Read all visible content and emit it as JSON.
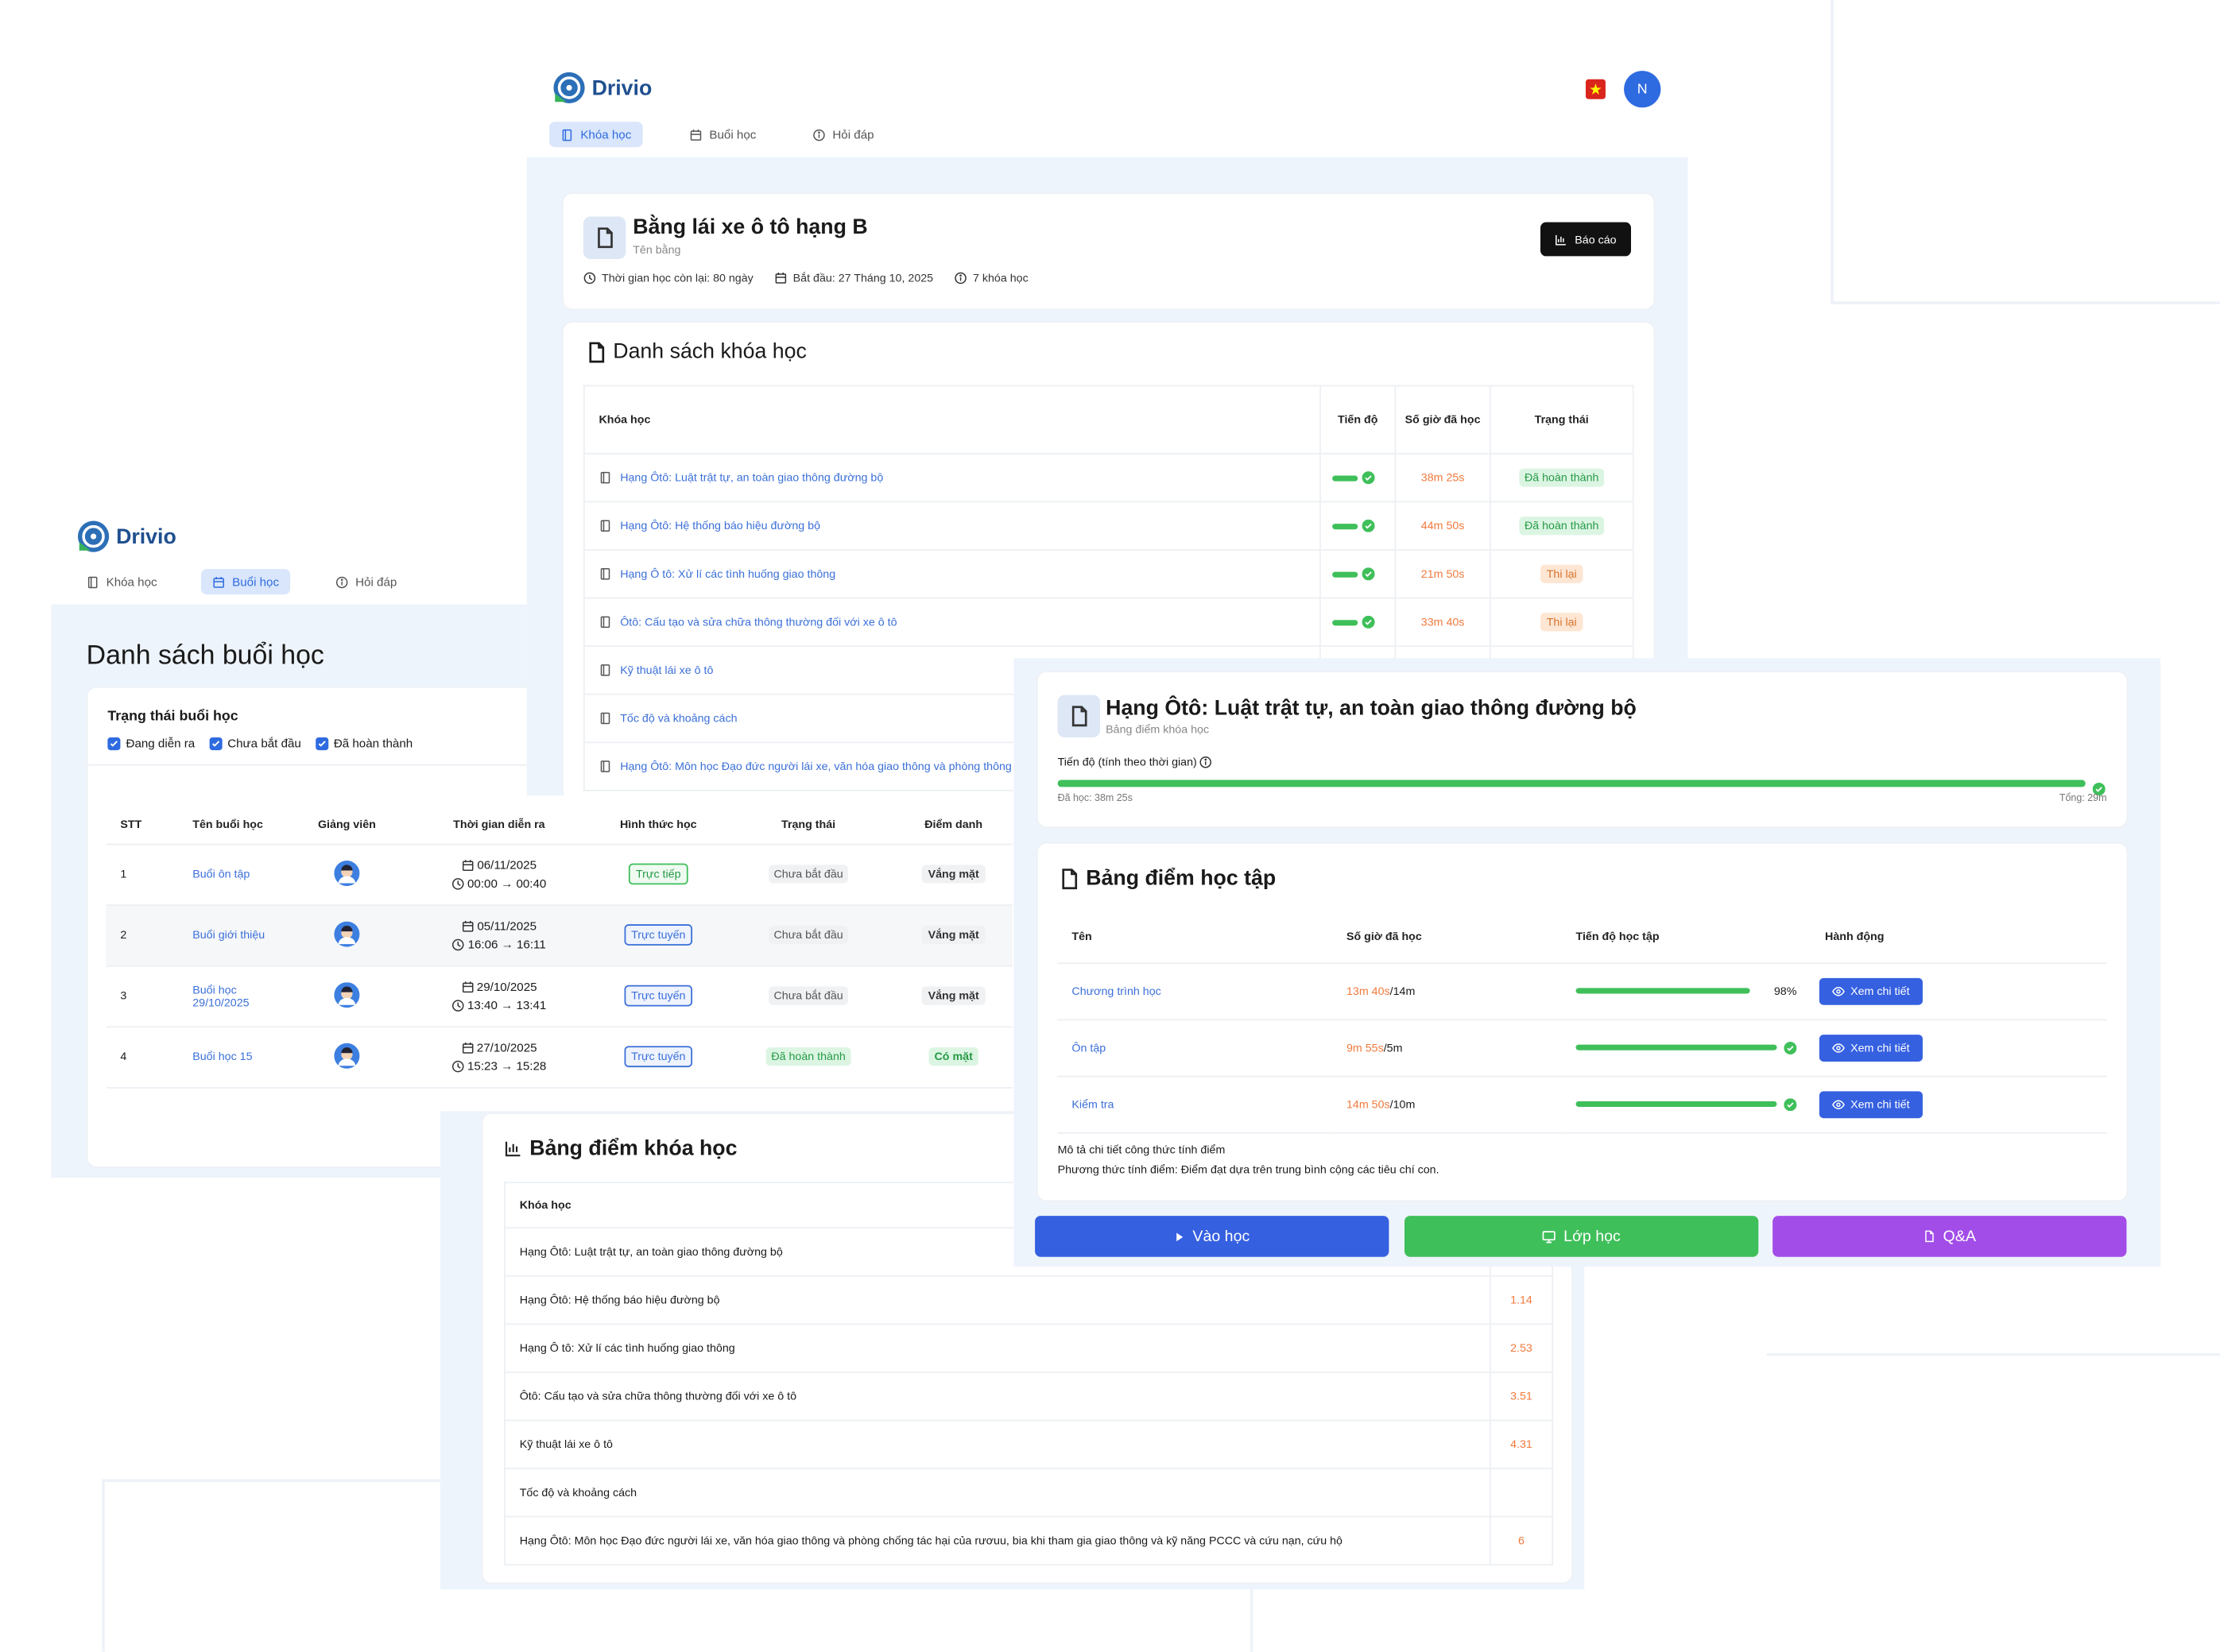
{
  "course_page": {
    "brand": "Drivio",
    "avatar": "N",
    "nav": [
      "Khóa học",
      "Buổi học",
      "Hỏi đáp"
    ],
    "header": {
      "title": "Bằng lái xe ô tô hạng B",
      "subtitle": "Tên bằng",
      "meta": [
        "Thời gian học còn lại: 80 ngày",
        "Bắt đầu: 27 Tháng 10, 2025",
        "7 khóa học"
      ],
      "button": "Báo cáo"
    },
    "course_list": {
      "title": "Danh sách khóa học",
      "columns": [
        "Khóa học",
        "Tiến độ",
        "Số giờ đã học",
        "Trạng thái"
      ],
      "rows": [
        {
          "name": "Hạng Ôtô: Luật trật tự, an toàn giao thông đường bộ",
          "hours": "38m 25s",
          "status": "Đã hoàn thành"
        },
        {
          "name": "Hạng Ôtô: Hệ thống báo hiệu đường bộ",
          "hours": "44m 50s",
          "status": "Đã hoàn thành"
        },
        {
          "name": "Hạng Ô tô: Xử lí các tình huống giao thông",
          "hours": "21m 50s",
          "status": "Thi lại"
        },
        {
          "name": "Ôtô: Cấu tạo và sửa chữa thông thường đối với xe ô tô",
          "hours": "33m 40s",
          "status": "Thi lại"
        },
        {
          "name": "Kỹ thuật lái xe ô tô"
        },
        {
          "name": "Tốc độ và khoảng cách"
        },
        {
          "name": "Hạng Ôtô: Môn học Đạo đức người lái xe, văn hóa giao thông và phòng thông và kỹ năng PCCC và cứu nạn, cứu hộ"
        }
      ]
    }
  },
  "session_page": {
    "brand": "Drivio",
    "nav": [
      "Khóa học",
      "Buổi học",
      "Hỏi đáp"
    ],
    "title": "Danh sách buổi học",
    "filter": {
      "label": "Trạng thái buổi học",
      "options": [
        "Đang diễn ra",
        "Chưa bắt đầu",
        "Đã hoàn thành"
      ]
    },
    "table": {
      "columns": [
        "STT",
        "Tên buổi học",
        "Giảng viên",
        "Thời gian diễn ra",
        "Hình thức học",
        "Trạng thái",
        "Điểm danh"
      ],
      "rows": [
        {
          "stt": 1,
          "name": "Buổi ôn tập",
          "date": "06/11/2025",
          "time": "00:00 → 00:40",
          "mode": "Trực tiếp",
          "status": "Chưa bắt đầu",
          "attendance": "Vắng mặt"
        },
        {
          "stt": 2,
          "name": "Buổi giới thiệu",
          "date": "05/11/2025",
          "time": "16:06 → 16:11",
          "mode": "Trực tuyến",
          "status": "Chưa bắt đầu",
          "attendance": "Vắng mặt"
        },
        {
          "stt": 3,
          "name": "Buổi học 29/10/2025",
          "date": "29/10/2025",
          "time": "13:40 → 13:41",
          "mode": "Trực tuyến",
          "status": "Chưa bắt đầu",
          "attendance": "Vắng mặt"
        },
        {
          "stt": 4,
          "name": "Buổi học 15",
          "date": "27/10/2025",
          "time": "15:23 → 15:28",
          "mode": "Trực tuyến",
          "status": "Đã hoàn thành",
          "attendance": "Có mặt"
        }
      ]
    }
  },
  "grades_page": {
    "title": "Bảng điểm khóa học",
    "column": "Khóa học",
    "rows": [
      {
        "name": "Hạng Ôtô: Luật trật tự, an toàn giao thông đường bộ"
      },
      {
        "name": "Hạng Ôtô: Hệ thống báo hiệu đường bộ",
        "score": 1.14
      },
      {
        "name": "Hạng Ô tô: Xử lí các tình huống giao thông",
        "score": 2.53
      },
      {
        "name": "Ôtô: Cấu tạo và sửa chữa thông thường đối với xe ô tô",
        "score": 3.51
      },
      {
        "name": "Kỹ thuật lái xe ô tô",
        "score": 4.31
      },
      {
        "name": "Tốc độ và khoảng cách"
      },
      {
        "name": "Hạng Ôtô: Môn học Đạo đức người lái xe, văn hóa giao thông và phòng chống tác hại của rươuu, bia khi tham gia giao thông và kỹ năng PCCC và cứu nạn, cứu hộ",
        "score": 6
      }
    ]
  },
  "detail_page": {
    "title": "Hạng Ôtô: Luật trật tự, an toàn giao thông đường bộ",
    "subtitle": "Bảng điểm khóa học",
    "progress_label": "Tiến độ (tính theo thời gian)",
    "studied": "Đã học: 38m 25s",
    "total": "Tổng: 29m",
    "scores": {
      "title": "Bảng điểm học tập",
      "columns": [
        "Tên",
        "Số giờ đã học",
        "Tiến độ học tập",
        "Hành động"
      ],
      "rows": [
        {
          "name": "Chương trình học",
          "studied": "13m 40s",
          "total": "/14m",
          "percent": "98%",
          "action": "Xem chi tiết"
        },
        {
          "name": "Ôn tập",
          "studied": "9m 55s",
          "total": "/5m",
          "action": "Xem chi tiết"
        },
        {
          "name": "Kiểm tra",
          "studied": "14m 50s",
          "total": "/10m",
          "action": "Xem chi tiết"
        }
      ]
    },
    "note_title": "Mô tả chi tiết công thức tính điểm",
    "note": "Phương thức tính điểm: Điểm đạt dựa trên trung bình cộng các tiêu chí con.",
    "buttons": [
      "Vào học",
      "Lớp học",
      "Q&A"
    ]
  }
}
